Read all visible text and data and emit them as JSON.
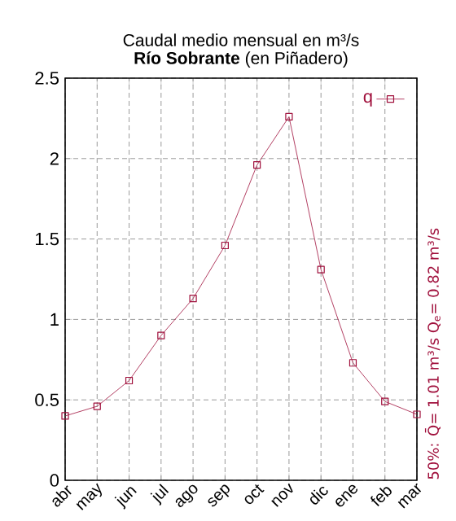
{
  "chart_data": {
    "type": "line",
    "title": "Caudal medio mensual en m³/s",
    "subtitle": "**Río Sobrante** (en Piñadero)",
    "categories": [
      "abr",
      "may",
      "jun",
      "jul",
      "ago",
      "sep",
      "oct",
      "nov",
      "dic",
      "ene",
      "feb",
      "mar"
    ],
    "series": [
      {
        "name": "q",
        "color": "#a0103c",
        "values": [
          0.4,
          0.46,
          0.62,
          0.9,
          1.13,
          1.46,
          1.96,
          2.26,
          1.31,
          0.73,
          0.49,
          0.41
        ]
      }
    ],
    "ylim": [
      0,
      2.5
    ],
    "yticks": [
      0,
      0.5,
      1,
      1.5,
      2,
      2.5
    ],
    "grid": true,
    "legend": "top right",
    "marker": "square",
    "line_style": "solid",
    "annotations": [
      "50%: Q̄= 1.01 m³/s   Q$_{e}$= 0.82 m³/s"
    ]
  }
}
